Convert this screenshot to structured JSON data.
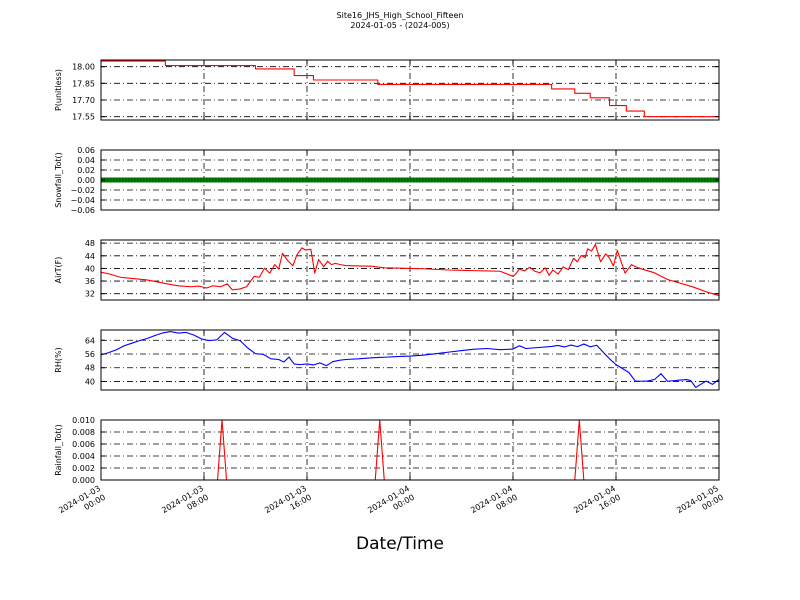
{
  "title": "Site16_JHS_High_School_Fifteen",
  "subtitle": "2024-01-05 - (2024-005)",
  "xlabel": "Date/Time",
  "x_range": [
    "2024-01-03 00:00",
    "2024-01-05 00:00"
  ],
  "x_ticks": [
    {
      "line1": "2024-01-03",
      "line2": "00:00"
    },
    {
      "line1": "2024-01-03",
      "line2": "08:00"
    },
    {
      "line1": "2024-01-03",
      "line2": "16:00"
    },
    {
      "line1": "2024-01-04",
      "line2": "00:00"
    },
    {
      "line1": "2024-01-04",
      "line2": "08:00"
    },
    {
      "line1": "2024-01-04",
      "line2": "16:00"
    },
    {
      "line1": "2024-01-05",
      "line2": "00:00"
    }
  ],
  "chart_data": [
    {
      "type": "line",
      "ylabel": "P(unitless)",
      "ylim": [
        17.52,
        18.06
      ],
      "yticks": [
        "17.55",
        "17.70",
        "17.85",
        "18.00"
      ],
      "grid": true,
      "color": "#ff0000",
      "series": [
        {
          "x_hours": [
            0,
            5,
            5,
            12,
            12,
            15,
            15,
            16.5,
            16.5,
            21.5,
            21.5,
            35,
            35,
            36.8,
            36.8,
            38,
            38,
            39.5,
            39.5,
            40.8,
            40.8,
            42.2,
            42.2,
            48
          ],
          "values": [
            18.05,
            18.05,
            18.01,
            18.01,
            17.98,
            17.98,
            17.92,
            17.92,
            17.88,
            17.88,
            17.84,
            17.84,
            17.8,
            17.8,
            17.76,
            17.76,
            17.72,
            17.72,
            17.65,
            17.65,
            17.6,
            17.6,
            17.55,
            17.55
          ]
        }
      ]
    },
    {
      "type": "line",
      "ylabel": "Snowfall_Tot()",
      "ylim": [
        -0.06,
        0.06
      ],
      "yticks": [
        "−0.06",
        "−0.04",
        "−0.02",
        "0.00",
        "0.02",
        "0.04",
        "0.06"
      ],
      "grid": true,
      "color": "#008000",
      "series": [
        {
          "x_hours": [
            0,
            48
          ],
          "values": [
            0,
            0
          ]
        }
      ]
    },
    {
      "type": "line",
      "ylabel": "AirT(F)",
      "ylim": [
        30,
        49
      ],
      "yticks": [
        "32",
        "36",
        "40",
        "44",
        "48"
      ],
      "grid": true,
      "color": "#ff0000",
      "series": [
        {
          "x_hours": [
            0,
            0.7,
            1.5,
            2.5,
            3.5,
            4.3,
            5,
            6,
            7,
            7.6,
            8.2,
            8.7,
            9.3,
            9.8,
            10.2,
            10.8,
            11.3,
            11.9,
            12.3,
            12.7,
            13.1,
            13.5,
            13.8,
            14.1,
            14.5,
            14.9,
            15.2,
            15.6,
            15.9,
            16.3,
            16.6,
            16.9,
            17.3,
            17.6,
            17.9,
            18.2,
            18.6,
            19,
            20,
            21,
            22,
            23,
            24,
            25,
            26,
            27,
            28,
            29,
            30,
            31,
            32,
            32.2,
            32.5,
            32.9,
            33.3,
            33.7,
            34.1,
            34.5,
            34.8,
            35.1,
            35.5,
            35.9,
            36.3,
            36.7,
            37,
            37.3,
            37.6,
            37.8,
            38.1,
            38.4,
            38.8,
            39.2,
            39.5,
            39.8,
            40.1,
            40.4,
            40.7,
            41.2,
            41.6,
            42,
            43,
            44,
            45,
            46,
            47,
            48
          ],
          "values": [
            38.8,
            38.2,
            37.2,
            36.8,
            36.4,
            35.8,
            35.2,
            34.5,
            34.2,
            34.4,
            33.8,
            34.5,
            34.2,
            35.1,
            33.2,
            33.5,
            34.2,
            37.5,
            37.2,
            40.1,
            38.5,
            41.2,
            39.8,
            44.8,
            42.5,
            40.8,
            44.2,
            46.5,
            45.8,
            46.1,
            38.5,
            42.8,
            40.5,
            42.3,
            41.2,
            41.6,
            41.2,
            40.9,
            40.8,
            40.7,
            40.2,
            40.1,
            40.0,
            39.9,
            39.7,
            39.5,
            39.4,
            39.3,
            39.2,
            39.1,
            37.5,
            38.2,
            39.8,
            39.2,
            40.4,
            39.1,
            38.6,
            40.2,
            37.8,
            39.5,
            38.2,
            40.5,
            39.6,
            43.2,
            42.1,
            44.1,
            43.4,
            46.2,
            45.5,
            47.6,
            42.1,
            44.6,
            43.2,
            40.8,
            45.7,
            42.1,
            38.5,
            41.2,
            40.4,
            39.8,
            38.6,
            36.5,
            35.3,
            34.1,
            32.6,
            31.4
          ]
        }
      ]
    },
    {
      "type": "line",
      "ylabel": "RH(%)",
      "ylim": [
        35,
        70
      ],
      "yticks": [
        "40",
        "48",
        "56",
        "64"
      ],
      "grid": true,
      "color": "#0000ff",
      "series": [
        {
          "x_hours": [
            0,
            0.6,
            1.2,
            1.8,
            2.4,
            3,
            3.6,
            4.2,
            4.8,
            5.4,
            6,
            6.6,
            7.2,
            7.8,
            8.4,
            9,
            9.6,
            10.2,
            10.8,
            11.4,
            12,
            12.6,
            13.2,
            13.8,
            14.2,
            14.6,
            15,
            15.5,
            16,
            16.5,
            17,
            17.5,
            18,
            18.5,
            19,
            20,
            21,
            22,
            23,
            24,
            25,
            26,
            27,
            28,
            29,
            30,
            31,
            32,
            32.5,
            33,
            34,
            35,
            35.5,
            36,
            36.5,
            37,
            37.5,
            38,
            38.5,
            39,
            39.5,
            40,
            41,
            41.5,
            42,
            42.5,
            43,
            43.5,
            44,
            45,
            45.5,
            45.8,
            46.2,
            47,
            47.5,
            48
          ],
          "values": [
            55.5,
            56.8,
            58.5,
            60.8,
            62.3,
            63.8,
            65.1,
            66.8,
            68.3,
            69.1,
            68.2,
            68.6,
            67.1,
            64.8,
            63.8,
            64.3,
            68.6,
            65.2,
            63.8,
            59.5,
            56.2,
            55.8,
            53.2,
            52.8,
            51.3,
            54.2,
            50.1,
            49.8,
            50.2,
            49.6,
            50.8,
            49.2,
            51.5,
            52.3,
            52.8,
            53.2,
            53.8,
            54.1,
            54.5,
            54.8,
            55.3,
            56.2,
            57.1,
            58.0,
            58.8,
            59.2,
            58.5,
            58.9,
            60.8,
            59.2,
            59.8,
            60.4,
            61.0,
            60.1,
            61.2,
            60.3,
            61.8,
            60.2,
            61.1,
            57.1,
            53.2,
            49.8,
            45.2,
            40.2,
            40.1,
            40.3,
            41.2,
            44.5,
            40.1,
            40.8,
            41.1,
            40.5,
            36.5,
            40.2,
            38.3,
            41.2
          ]
        }
      ]
    },
    {
      "type": "line",
      "ylabel": "Rainfall_Tot()",
      "ylim": [
        0,
        0.01
      ],
      "yticks": [
        "0.000",
        "0.002",
        "0.004",
        "0.006",
        "0.008",
        "0.010"
      ],
      "grid": true,
      "color": "#ff0000",
      "series": [
        {
          "x_hours": [
            0,
            9.05,
            9.4,
            9.75,
            21.3,
            21.65,
            22.0,
            36.8,
            37.15,
            37.5,
            48
          ],
          "values": [
            0,
            0,
            0.01,
            0,
            0,
            0.01,
            0,
            0,
            0.01,
            0,
            0
          ]
        }
      ]
    }
  ]
}
